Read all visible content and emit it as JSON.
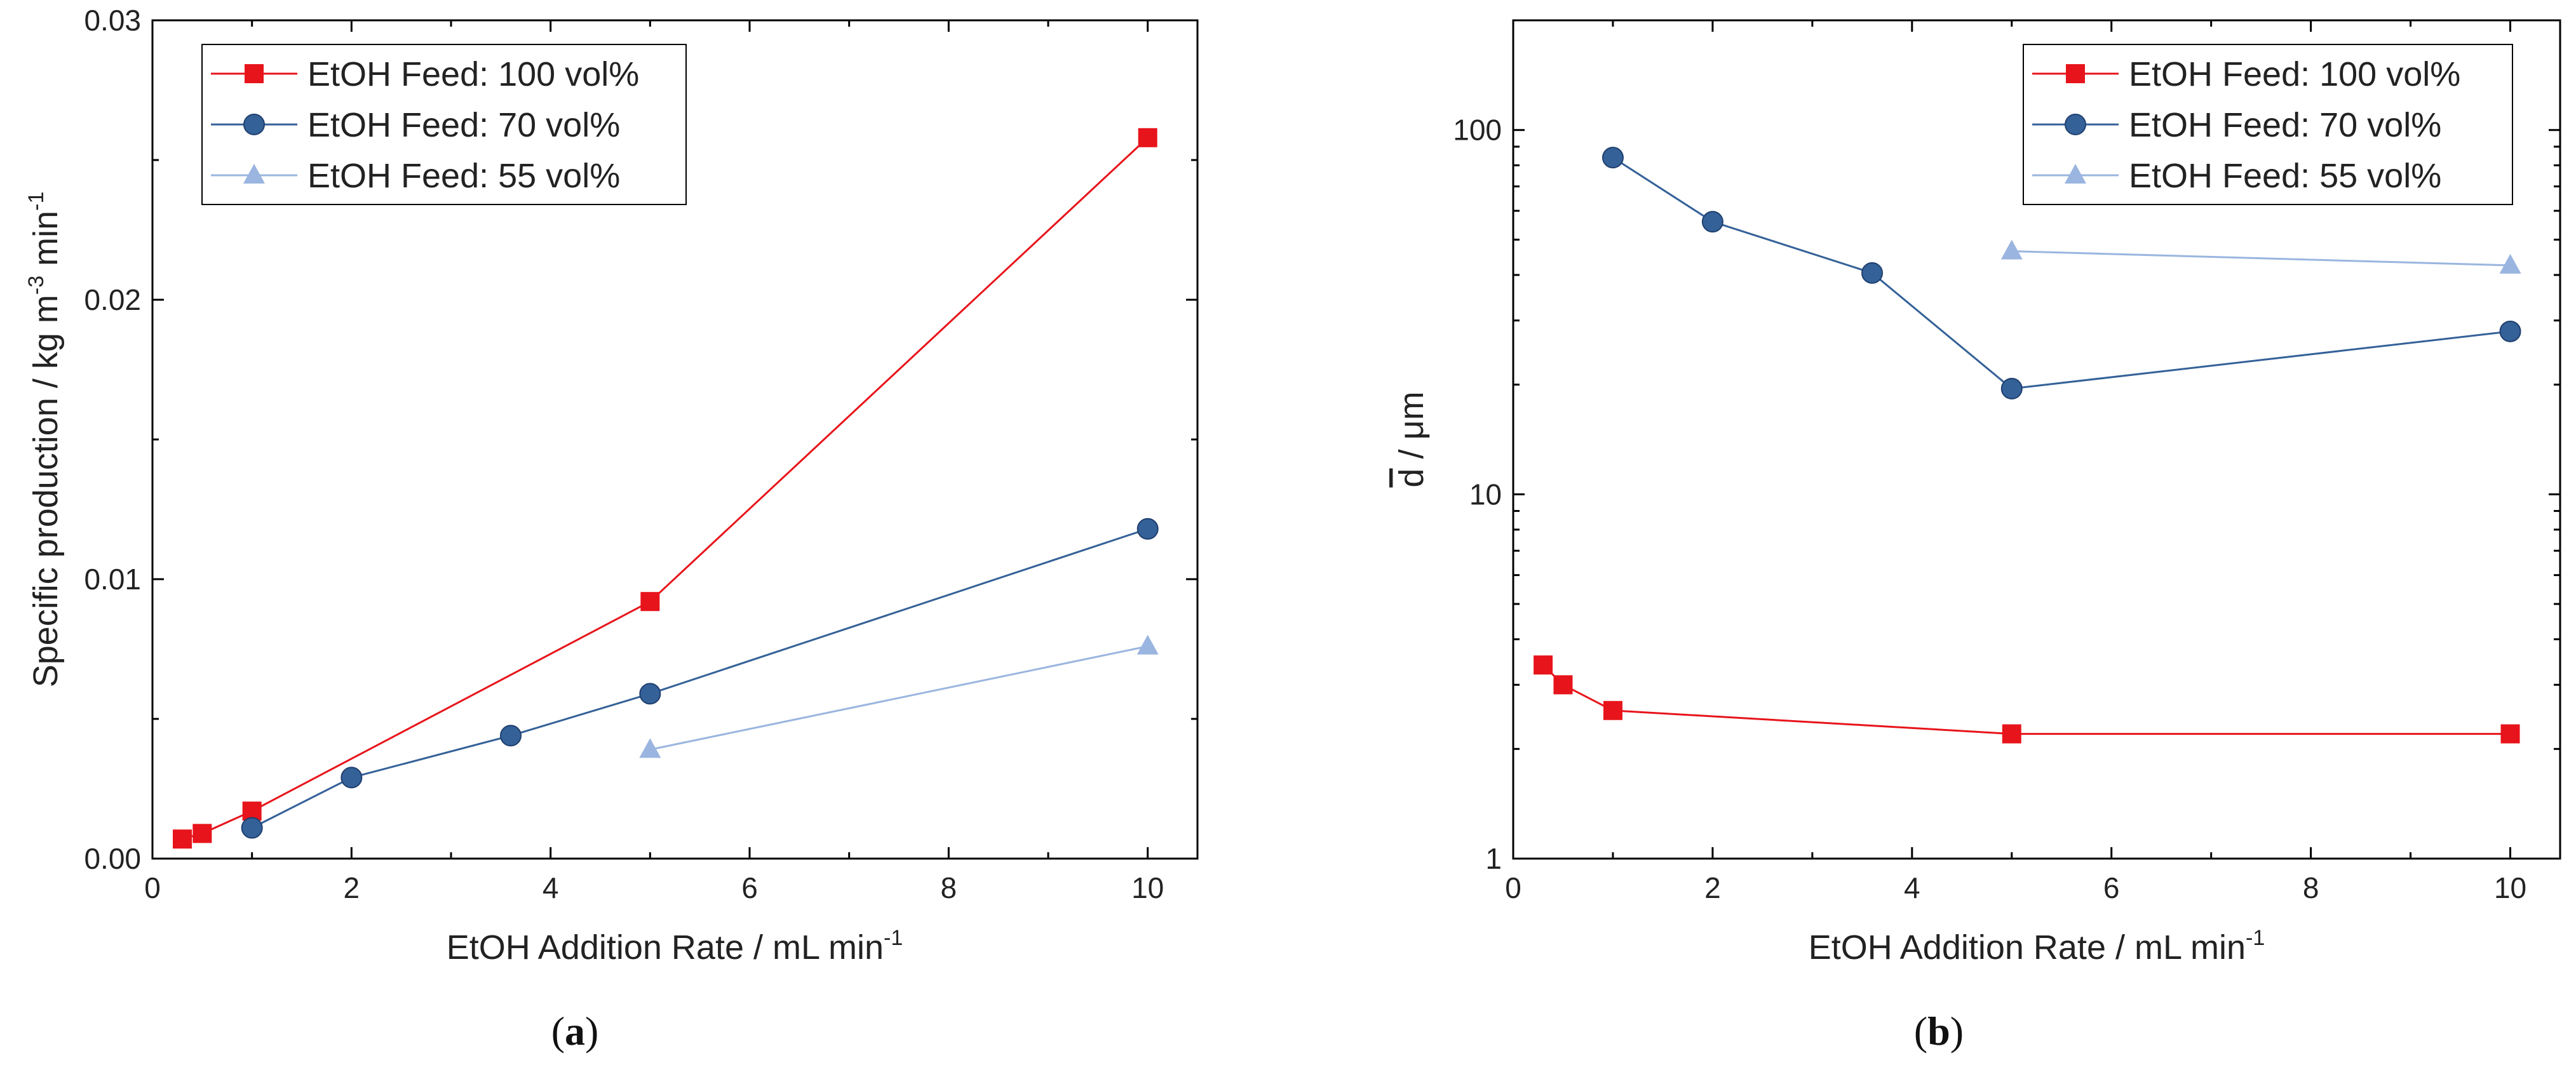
{
  "chart_data": [
    {
      "type": "line",
      "panel": "a",
      "caption": {
        "open": "(",
        "letter": "a",
        "close": ")"
      },
      "xlabel": {
        "text": "EtOH Addition Rate / mL min",
        "sup": "-1"
      },
      "ylabel": {
        "parts": [
          {
            "text": "Specific production / kg m"
          },
          {
            "text": "-3",
            "sup": true
          },
          {
            "text": " min"
          },
          {
            "text": "-1",
            "sup": true
          }
        ]
      },
      "xlim": [
        0,
        10.5
      ],
      "ylim": [
        0,
        0.03
      ],
      "yscale": "linear",
      "xticks": [
        0,
        2,
        4,
        6,
        8,
        10
      ],
      "xtick_labels": [
        "0",
        "2",
        "4",
        "6",
        "8",
        "10"
      ],
      "yticks": [
        0,
        0.01,
        0.02,
        0.03
      ],
      "ytick_labels": [
        "0.00",
        "0.01",
        "0.02",
        "0.03"
      ],
      "yminor": [
        0.005,
        0.015,
        0.025
      ],
      "legend_position": "top-left",
      "series": [
        {
          "name": "EtOH Feed: 100 vol%",
          "marker": "square",
          "color": "#e8141b",
          "x": [
            0.3,
            0.5,
            1,
            5,
            10
          ],
          "y": [
            0.0007,
            0.0009,
            0.0017,
            0.0092,
            0.0258
          ]
        },
        {
          "name": "EtOH Feed: 70 vol%",
          "marker": "circle",
          "color": "#356199",
          "x": [
            1,
            2,
            3.6,
            5,
            10
          ],
          "y": [
            0.0011,
            0.0029,
            0.0044,
            0.0059,
            0.0118
          ]
        },
        {
          "name": "EtOH Feed: 55 vol%",
          "marker": "triangle",
          "color": "#9ab5df",
          "x": [
            5,
            10
          ],
          "y": [
            0.0039,
            0.0076
          ]
        }
      ]
    },
    {
      "type": "line",
      "panel": "b",
      "caption": {
        "open": "(",
        "letter": "b",
        "close": ")"
      },
      "xlabel": {
        "text": "EtOH Addition Rate / mL min",
        "sup": "-1"
      },
      "ylabel": {
        "parts": [
          {
            "text": "d",
            "overline": true
          },
          {
            "text": " / μm"
          }
        ]
      },
      "xlim": [
        0,
        10.5
      ],
      "ylim": [
        1,
        200
      ],
      "yscale": "log",
      "xticks": [
        0,
        2,
        4,
        6,
        8,
        10
      ],
      "xtick_labels": [
        "0",
        "2",
        "4",
        "6",
        "8",
        "10"
      ],
      "yticks": [
        1,
        10,
        100
      ],
      "ytick_labels": [
        "1",
        "10",
        "100"
      ],
      "legend_position": "top-right",
      "series": [
        {
          "name": "EtOH Feed: 100 vol%",
          "marker": "square",
          "color": "#e8141b",
          "x": [
            0.3,
            0.5,
            1,
            5,
            10
          ],
          "y": [
            3.4,
            3.0,
            2.55,
            2.2,
            2.2
          ]
        },
        {
          "name": "EtOH Feed: 70 vol%",
          "marker": "circle",
          "color": "#356199",
          "x": [
            1,
            2,
            3.6,
            5,
            10
          ],
          "y": [
            84,
            56,
            40.5,
            19.5,
            28
          ]
        },
        {
          "name": "EtOH Feed: 55 vol%",
          "marker": "triangle",
          "color": "#9ab5df",
          "x": [
            5,
            10
          ],
          "y": [
            46.5,
            42.5
          ]
        }
      ]
    }
  ]
}
